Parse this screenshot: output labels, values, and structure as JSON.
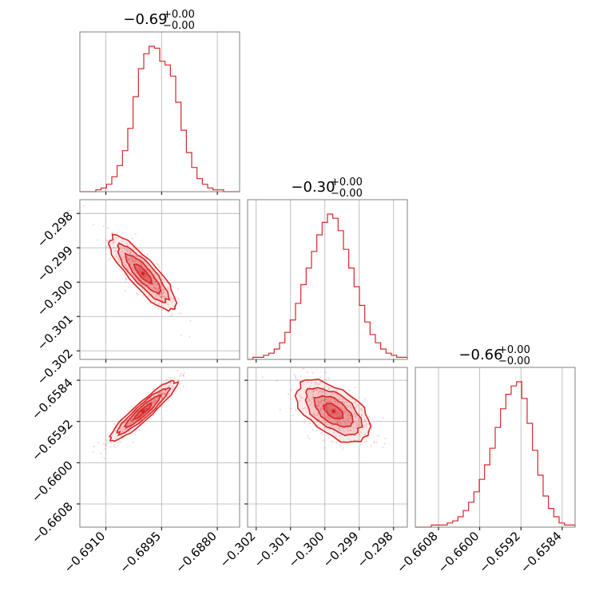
{
  "chart_data": {
    "type": "corner",
    "color": "#d62728",
    "grid": true,
    "params": [
      {
        "title": "−0.69",
        "title_sup": "+0.00",
        "title_sub": "−0.00",
        "range": [
          -0.6917,
          -0.6874
        ],
        "ticks": [
          -0.691,
          -0.6895,
          -0.688
        ],
        "tick_labels": [
          "−0.6910",
          "−0.6895",
          "−0.6880"
        ],
        "mean": -0.69,
        "sd": 0.00046,
        "hist": [
          0,
          0,
          0,
          1,
          2,
          4,
          8,
          14,
          22,
          34,
          51,
          66,
          74,
          78,
          77,
          70,
          68,
          62,
          48,
          33,
          21,
          13,
          7,
          4,
          2,
          1,
          1,
          0,
          0,
          0
        ]
      },
      {
        "title": "−0.30",
        "title_sup": "+0.00",
        "title_sub": "−0.00",
        "range": [
          -0.30225,
          -0.2976
        ],
        "ticks": [
          -0.302,
          -0.301,
          -0.3,
          -0.299,
          -0.298
        ],
        "tick_labels": [
          "−0.302",
          "−0.301",
          "−0.300",
          "−0.299",
          "−0.298"
        ],
        "mean": -0.29975,
        "sd": 0.00055,
        "hist": [
          0,
          1,
          1,
          2,
          3,
          5,
          8,
          13,
          19,
          27,
          36,
          44,
          52,
          60,
          66,
          70,
          68,
          62,
          53,
          44,
          35,
          26,
          18,
          12,
          8,
          5,
          3,
          2,
          1,
          1
        ]
      },
      {
        "title": "−0.66",
        "title_sup": "+0.00",
        "title_sub": "−0.00",
        "range": [
          -0.66125,
          -0.65815
        ],
        "ticks": [
          -0.6608,
          -0.66,
          -0.6592,
          -0.6584
        ],
        "tick_labels": [
          "−0.6608",
          "−0.6600",
          "−0.6592",
          "−0.6584"
        ],
        "mean": -0.659,
        "sd": 0.0003,
        "hist": [
          0,
          0,
          0,
          1,
          1,
          1,
          2,
          3,
          5,
          8,
          12,
          17,
          23,
          30,
          38,
          48,
          57,
          64,
          68,
          70,
          62,
          50,
          37,
          25,
          15,
          9,
          5,
          2,
          1,
          1
        ]
      }
    ],
    "correlations": [
      [
        1,
        -0.85,
        0.93
      ],
      [
        -0.85,
        1,
        -0.55
      ],
      [
        0.93,
        -0.55,
        1
      ]
    ]
  }
}
